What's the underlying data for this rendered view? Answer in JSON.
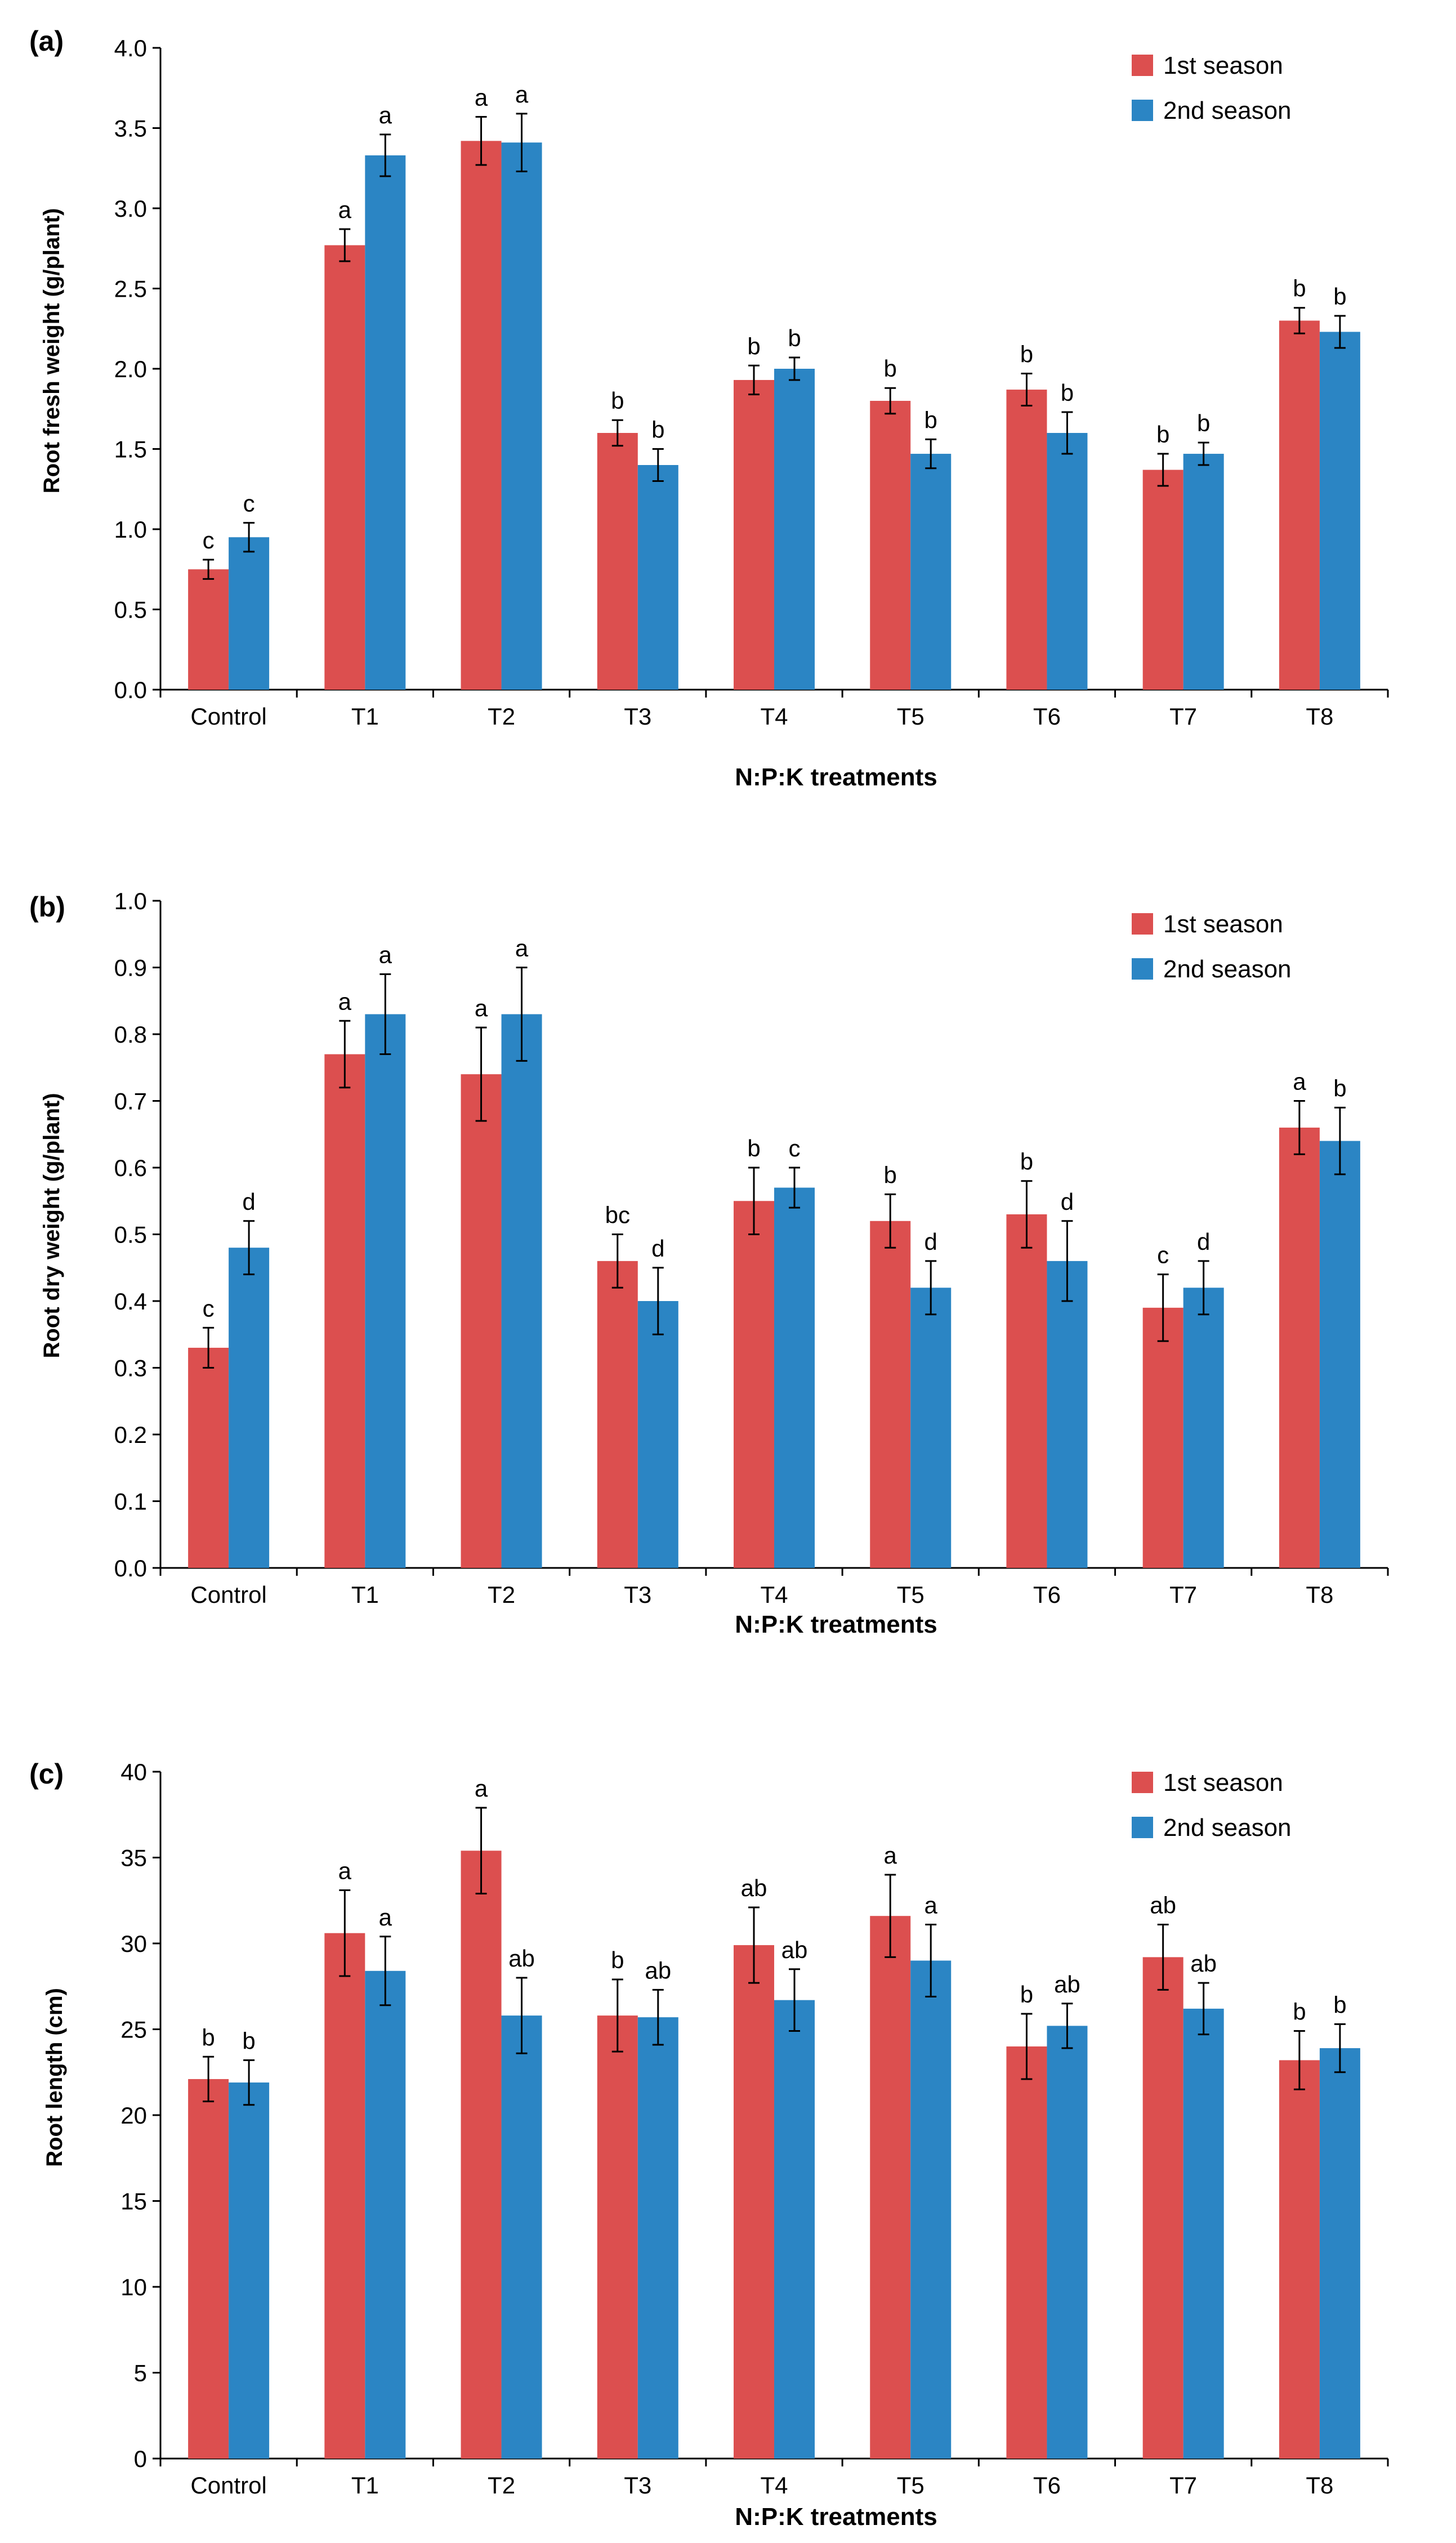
{
  "chart_data": [
    {
      "type": "bar",
      "panel_label": "(a)",
      "ylabel": "Root fresh weight (g/plant)",
      "xlabel": "N:P:K treatments",
      "ylim": [
        0,
        4.0
      ],
      "yticks": [
        "0.0",
        "0.5",
        "1.0",
        "1.5",
        "2.0",
        "2.5",
        "3.0",
        "3.5",
        "4.0"
      ],
      "categories": [
        "Control",
        "T1",
        "T2",
        "T3",
        "T4",
        "T5",
        "T6",
        "T7",
        "T8"
      ],
      "series": [
        {
          "name": "1st season",
          "color": "#DC4F4F",
          "values": [
            0.75,
            2.77,
            3.42,
            1.6,
            1.93,
            1.8,
            1.87,
            1.37,
            2.3
          ],
          "errors": [
            0.06,
            0.1,
            0.15,
            0.08,
            0.09,
            0.08,
            0.1,
            0.1,
            0.08
          ],
          "letters": [
            "c",
            "a",
            "a",
            "b",
            "b",
            "b",
            "b",
            "b",
            "b"
          ]
        },
        {
          "name": "2nd season",
          "color": "#2B85C4",
          "values": [
            0.95,
            3.33,
            3.41,
            1.4,
            2.0,
            1.47,
            1.6,
            1.47,
            2.23
          ],
          "errors": [
            0.09,
            0.13,
            0.18,
            0.1,
            0.07,
            0.09,
            0.13,
            0.07,
            0.1
          ],
          "letters": [
            "c",
            "a",
            "a",
            "b",
            "b",
            "b",
            "b",
            "b",
            "b"
          ]
        }
      ]
    },
    {
      "type": "bar",
      "panel_label": "(b)",
      "ylabel": "Root dry weight (g/plant)",
      "xlabel": "N:P:K treatments",
      "ylim": [
        0,
        1.0
      ],
      "yticks": [
        "0.0",
        "0.1",
        "0.2",
        "0.3",
        "0.4",
        "0.5",
        "0.6",
        "0.7",
        "0.8",
        "0.9",
        "1.0"
      ],
      "categories": [
        "Control",
        "T1",
        "T2",
        "T3",
        "T4",
        "T5",
        "T6",
        "T7",
        "T8"
      ],
      "series": [
        {
          "name": "1st season",
          "color": "#DC4F4F",
          "values": [
            0.33,
            0.77,
            0.74,
            0.46,
            0.55,
            0.52,
            0.53,
            0.39,
            0.66
          ],
          "errors": [
            0.03,
            0.05,
            0.07,
            0.04,
            0.05,
            0.04,
            0.05,
            0.05,
            0.04
          ],
          "letters": [
            "c",
            "a",
            "a",
            "bc",
            "b",
            "b",
            "b",
            "c",
            "a"
          ]
        },
        {
          "name": "2nd season",
          "color": "#2B85C4",
          "values": [
            0.48,
            0.83,
            0.83,
            0.4,
            0.57,
            0.42,
            0.46,
            0.42,
            0.64
          ],
          "errors": [
            0.04,
            0.06,
            0.07,
            0.05,
            0.03,
            0.04,
            0.06,
            0.04,
            0.05
          ],
          "letters": [
            "d",
            "a",
            "a",
            "d",
            "c",
            "d",
            "d",
            "d",
            "b"
          ]
        }
      ]
    },
    {
      "type": "bar",
      "panel_label": "(c)",
      "ylabel": "Root length (cm)",
      "xlabel": "N:P:K treatments",
      "ylim": [
        0,
        40
      ],
      "yticks": [
        "0",
        "5",
        "10",
        "15",
        "20",
        "25",
        "30",
        "35",
        "40"
      ],
      "categories": [
        "Control",
        "T1",
        "T2",
        "T3",
        "T4",
        "T5",
        "T6",
        "T7",
        "T8"
      ],
      "series": [
        {
          "name": "1st season",
          "color": "#DC4F4F",
          "values": [
            22.1,
            30.6,
            35.4,
            25.8,
            29.9,
            31.6,
            24.0,
            29.2,
            23.2
          ],
          "errors": [
            1.3,
            2.5,
            2.5,
            2.1,
            2.2,
            2.4,
            1.9,
            1.9,
            1.7
          ],
          "letters": [
            "b",
            "a",
            "a",
            "b",
            "ab",
            "a",
            "b",
            "ab",
            "b"
          ]
        },
        {
          "name": "2nd season",
          "color": "#2B85C4",
          "values": [
            21.9,
            28.4,
            25.8,
            25.7,
            26.7,
            29.0,
            25.2,
            26.2,
            23.9
          ],
          "errors": [
            1.3,
            2.0,
            2.2,
            1.6,
            1.8,
            2.1,
            1.3,
            1.5,
            1.4
          ],
          "letters": [
            "b",
            "a",
            "ab",
            "ab",
            "ab",
            "a",
            "ab",
            "ab",
            "b"
          ]
        }
      ]
    }
  ]
}
